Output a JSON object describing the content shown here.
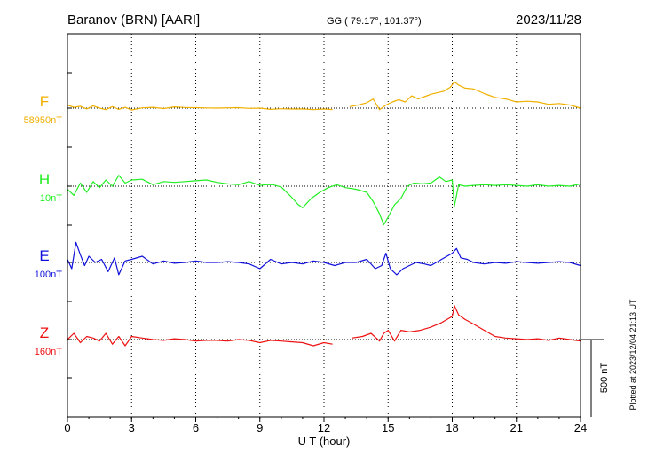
{
  "header": {
    "station": "Baranov (BRN)  [AARI]",
    "coords": "GG ( 79.17°, 101.37°)",
    "date": "2023/11/28"
  },
  "footer": {
    "plotted": "Plotted at 2023/12/04 21:13 UT",
    "scale_label": "500 nT"
  },
  "chart_data": {
    "type": "line",
    "xlabel": "U T (hour)",
    "xlim": [
      0,
      24
    ],
    "xticks": [
      "0",
      "3",
      "6",
      "9",
      "12",
      "15",
      "18",
      "21",
      "24"
    ],
    "scale_bar_nT": 500,
    "grid": true,
    "series": [
      {
        "name": "F",
        "baseline_label": "58950nT",
        "color": "#f0b000",
        "x": [
          0,
          0.3,
          0.6,
          0.9,
          1.2,
          1.5,
          1.8,
          2.1,
          2.4,
          2.7,
          3,
          3.5,
          4,
          4.5,
          5,
          5.5,
          6,
          6.5,
          7,
          7.5,
          8,
          8.5,
          9,
          9.5,
          10,
          10.5,
          11,
          11.5,
          12,
          12.4,
          12.8,
          13.2,
          13.6,
          14,
          14.3,
          14.6,
          14.9,
          15.2,
          15.5,
          15.8,
          16.1,
          16.4,
          16.7,
          17,
          17.3,
          17.6,
          17.9,
          18.1,
          18.3,
          18.6,
          19,
          19.5,
          20,
          20.5,
          21,
          21.5,
          22,
          22.5,
          23,
          23.5,
          24
        ],
        "y": [
          20,
          5,
          12,
          -5,
          15,
          0,
          -10,
          10,
          -8,
          5,
          -12,
          2,
          5,
          -3,
          8,
          4,
          3,
          1,
          0,
          2,
          3,
          -2,
          0,
          -8,
          -4,
          -6,
          -5,
          -10,
          -6,
          -9,
          null,
          10,
          20,
          35,
          60,
          -10,
          20,
          40,
          55,
          40,
          80,
          60,
          75,
          90,
          100,
          110,
          135,
          170,
          150,
          130,
          125,
          95,
          70,
          60,
          40,
          45,
          40,
          25,
          30,
          20,
          0
        ]
      },
      {
        "name": "H",
        "baseline_label": "10nT",
        "color": "#22ee22",
        "x": [
          0,
          0.3,
          0.6,
          0.9,
          1.2,
          1.5,
          1.8,
          2.1,
          2.4,
          2.7,
          3,
          3.5,
          4,
          4.5,
          5,
          5.5,
          6,
          6.5,
          7,
          7.5,
          8,
          8.5,
          9,
          9.3,
          9.6,
          10,
          10.4,
          10.8,
          11,
          11.4,
          11.8,
          12.2,
          12.6,
          13,
          13.5,
          14,
          14.3,
          14.6,
          14.8,
          15,
          15.3,
          15.6,
          15.9,
          16.2,
          16.6,
          17,
          17.4,
          17.7,
          18,
          18.1,
          18.3,
          18.6,
          19,
          19.5,
          20,
          20.5,
          21,
          21.5,
          22,
          22.5,
          23,
          23.5,
          24
        ],
        "y": [
          -20,
          -60,
          20,
          -40,
          30,
          -10,
          40,
          0,
          70,
          20,
          40,
          45,
          10,
          30,
          25,
          30,
          35,
          40,
          25,
          15,
          10,
          30,
          5,
          10,
          10,
          -5,
          -60,
          -120,
          -140,
          -80,
          -40,
          -10,
          10,
          -10,
          -20,
          -40,
          -100,
          -180,
          -250,
          -200,
          -120,
          -80,
          0,
          20,
          15,
          20,
          60,
          30,
          40,
          -130,
          10,
          0,
          5,
          10,
          5,
          10,
          5,
          0,
          10,
          0,
          5,
          0,
          15
        ]
      },
      {
        "name": "E",
        "baseline_label": "100nT",
        "color": "#1010dd",
        "x": [
          0,
          0.2,
          0.4,
          0.6,
          0.8,
          1,
          1.3,
          1.6,
          1.9,
          2.2,
          2.4,
          2.7,
          3,
          3.5,
          4,
          4.5,
          5,
          5.5,
          6,
          6.5,
          7,
          7.5,
          8,
          8.5,
          9,
          9.5,
          10,
          10.5,
          11,
          11.5,
          12,
          12.5,
          13,
          13.5,
          14,
          14.4,
          14.7,
          14.9,
          15.1,
          15.4,
          15.7,
          16,
          16.3,
          16.7,
          17,
          17.5,
          18,
          18.2,
          18.4,
          18.7,
          19,
          19.5,
          20,
          20.5,
          21,
          21.5,
          22,
          22.5,
          23,
          23.5,
          24
        ],
        "y": [
          20,
          -40,
          130,
          50,
          -20,
          40,
          0,
          20,
          -60,
          30,
          -80,
          10,
          20,
          40,
          -10,
          10,
          -5,
          0,
          10,
          0,
          0,
          5,
          0,
          -10,
          -40,
          20,
          -10,
          0,
          -10,
          10,
          0,
          -20,
          0,
          0,
          20,
          -40,
          -20,
          60,
          -40,
          -80,
          -40,
          -20,
          0,
          -10,
          -20,
          20,
          60,
          90,
          30,
          20,
          0,
          -10,
          0,
          -5,
          5,
          0,
          -5,
          0,
          5,
          0,
          -20
        ]
      },
      {
        "name": "Z",
        "baseline_label": "160nT",
        "color": "#ee1111",
        "x": [
          0,
          0.3,
          0.6,
          0.9,
          1.2,
          1.5,
          1.8,
          2.1,
          2.4,
          2.7,
          3,
          3.5,
          4,
          4.5,
          5,
          5.5,
          6,
          6.5,
          7,
          7.5,
          8,
          8.5,
          9,
          9.5,
          10,
          10.5,
          11,
          11.5,
          12,
          12.4,
          12.8,
          13.3,
          13.8,
          14.2,
          14.6,
          14.8,
          15,
          15.3,
          15.6,
          16,
          16.5,
          17,
          17.5,
          18,
          18.1,
          18.3,
          18.6,
          19,
          19.5,
          20,
          20.5,
          21,
          21.5,
          22,
          22.5,
          23,
          23.5,
          24
        ],
        "y": [
          0,
          40,
          -20,
          20,
          10,
          -10,
          40,
          -30,
          20,
          -40,
          20,
          10,
          0,
          -5,
          5,
          0,
          -10,
          -5,
          -5,
          -10,
          0,
          -5,
          -20,
          -5,
          -10,
          -15,
          -20,
          -40,
          -20,
          -30,
          null,
          10,
          20,
          40,
          -10,
          40,
          60,
          -10,
          60,
          50,
          60,
          80,
          110,
          150,
          220,
          160,
          130,
          100,
          60,
          20,
          10,
          5,
          0,
          5,
          -5,
          10,
          0,
          -10
        ]
      }
    ]
  }
}
